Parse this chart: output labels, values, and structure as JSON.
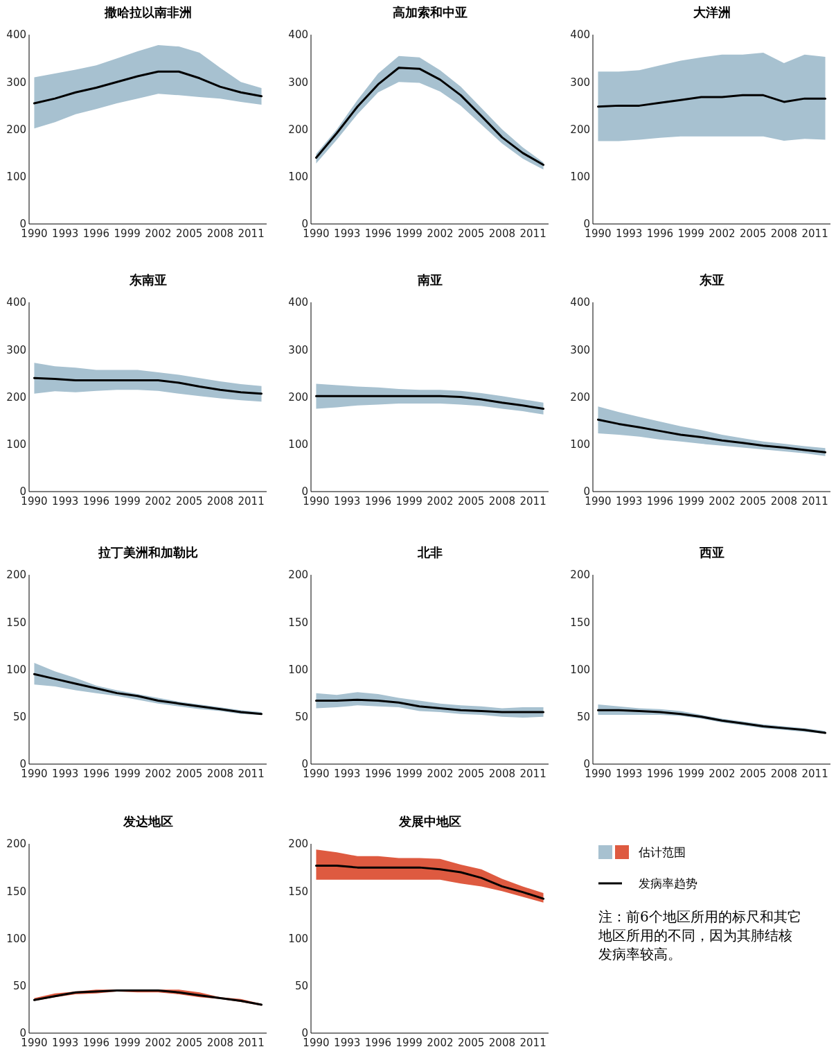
{
  "chart_data": [
    {
      "type": "line",
      "title": "撒哈拉以南非洲",
      "x": [
        1990,
        1992,
        1994,
        1996,
        1998,
        2000,
        2002,
        2004,
        2006,
        2008,
        2010,
        2012
      ],
      "xlim": [
        1989.5,
        2012.5
      ],
      "xticks": [
        1990,
        1993,
        1996,
        1999,
        2002,
        2005,
        2008,
        2011
      ],
      "ylim": [
        0,
        400
      ],
      "yticks": [
        0,
        100,
        200,
        300,
        400
      ],
      "grid": false,
      "colors": [
        "#a7c1d0"
      ],
      "series": [
        {
          "color": "#000000",
          "values": [
            255,
            265,
            278,
            288,
            300,
            312,
            322,
            322,
            308,
            290,
            278,
            270
          ],
          "upper": [
            310,
            318,
            326,
            335,
            350,
            365,
            378,
            375,
            362,
            330,
            300,
            287
          ],
          "lower": [
            202,
            215,
            232,
            243,
            255,
            265,
            275,
            272,
            268,
            265,
            258,
            252
          ]
        }
      ]
    },
    {
      "type": "line",
      "title": "高加索和中亚",
      "x": [
        1990,
        1992,
        1994,
        1996,
        1998,
        2000,
        2002,
        2004,
        2006,
        2008,
        2010,
        2012
      ],
      "xlim": [
        1989.5,
        2012.5
      ],
      "xticks": [
        1990,
        1993,
        1996,
        1999,
        2002,
        2005,
        2008,
        2011
      ],
      "ylim": [
        0,
        400
      ],
      "yticks": [
        0,
        100,
        200,
        300,
        400
      ],
      "grid": false,
      "colors": [
        "#a7c1d0"
      ],
      "series": [
        {
          "color": "#000000",
          "values": [
            140,
            192,
            248,
            295,
            330,
            328,
            305,
            272,
            228,
            183,
            150,
            125
          ],
          "upper": [
            148,
            200,
            262,
            318,
            355,
            352,
            325,
            290,
            245,
            200,
            162,
            130
          ],
          "lower": [
            128,
            178,
            232,
            278,
            300,
            298,
            280,
            250,
            210,
            170,
            138,
            115
          ]
        }
      ]
    },
    {
      "type": "line",
      "title": "大洋洲",
      "x": [
        1990,
        1992,
        1994,
        1996,
        1998,
        2000,
        2002,
        2004,
        2006,
        2008,
        2010,
        2012
      ],
      "xlim": [
        1989.5,
        2012.5
      ],
      "xticks": [
        1990,
        1993,
        1996,
        1999,
        2002,
        2005,
        2008,
        2011
      ],
      "ylim": [
        0,
        400
      ],
      "yticks": [
        0,
        100,
        200,
        300,
        400
      ],
      "grid": false,
      "colors": [
        "#a7c1d0"
      ],
      "series": [
        {
          "color": "#000000",
          "values": [
            248,
            250,
            250,
            256,
            262,
            268,
            268,
            272,
            272,
            258,
            265,
            265
          ],
          "upper": [
            322,
            322,
            325,
            335,
            345,
            352,
            358,
            358,
            362,
            340,
            358,
            353
          ],
          "lower": [
            175,
            175,
            178,
            182,
            185,
            185,
            185,
            185,
            185,
            176,
            180,
            178
          ]
        }
      ]
    },
    {
      "type": "line",
      "title": "东南亚",
      "x": [
        1990,
        1992,
        1994,
        1996,
        1998,
        2000,
        2002,
        2004,
        2006,
        2008,
        2010,
        2012
      ],
      "xlim": [
        1989.5,
        2012.5
      ],
      "xticks": [
        1990,
        1993,
        1996,
        1999,
        2002,
        2005,
        2008,
        2011
      ],
      "ylim": [
        0,
        400
      ],
      "yticks": [
        0,
        100,
        200,
        300,
        400
      ],
      "grid": false,
      "colors": [
        "#a7c1d0"
      ],
      "series": [
        {
          "color": "#000000",
          "values": [
            240,
            238,
            235,
            235,
            235,
            235,
            235,
            230,
            222,
            215,
            210,
            207
          ],
          "upper": [
            272,
            265,
            262,
            257,
            257,
            257,
            252,
            247,
            240,
            233,
            227,
            223
          ],
          "lower": [
            207,
            212,
            210,
            213,
            215,
            215,
            213,
            207,
            202,
            197,
            193,
            190
          ]
        }
      ]
    },
    {
      "type": "line",
      "title": "南亚",
      "x": [
        1990,
        1992,
        1994,
        1996,
        1998,
        2000,
        2002,
        2004,
        2006,
        2008,
        2010,
        2012
      ],
      "xlim": [
        1989.5,
        2012.5
      ],
      "xticks": [
        1990,
        1993,
        1996,
        1999,
        2002,
        2005,
        2008,
        2011
      ],
      "ylim": [
        0,
        400
      ],
      "yticks": [
        0,
        100,
        200,
        300,
        400
      ],
      "grid": false,
      "colors": [
        "#a7c1d0"
      ],
      "series": [
        {
          "color": "#000000",
          "values": [
            202,
            202,
            202,
            202,
            202,
            202,
            202,
            200,
            195,
            188,
            182,
            175
          ],
          "upper": [
            228,
            225,
            222,
            220,
            217,
            215,
            215,
            213,
            208,
            202,
            195,
            188
          ],
          "lower": [
            175,
            178,
            182,
            184,
            186,
            186,
            186,
            184,
            181,
            175,
            170,
            163
          ]
        }
      ]
    },
    {
      "type": "line",
      "title": "东亚",
      "x": [
        1990,
        1992,
        1994,
        1996,
        1998,
        2000,
        2002,
        2004,
        2006,
        2008,
        2010,
        2012
      ],
      "xlim": [
        1989.5,
        2012.5
      ],
      "xticks": [
        1990,
        1993,
        1996,
        1999,
        2002,
        2005,
        2008,
        2011
      ],
      "ylim": [
        0,
        400
      ],
      "yticks": [
        0,
        100,
        200,
        300,
        400
      ],
      "grid": false,
      "colors": [
        "#a7c1d0"
      ],
      "series": [
        {
          "color": "#000000",
          "values": [
            152,
            143,
            136,
            128,
            120,
            115,
            108,
            103,
            97,
            93,
            88,
            83
          ],
          "upper": [
            180,
            168,
            158,
            148,
            138,
            130,
            120,
            113,
            106,
            101,
            96,
            92
          ],
          "lower": [
            123,
            120,
            116,
            110,
            106,
            101,
            97,
            93,
            89,
            85,
            81,
            75
          ]
        }
      ]
    },
    {
      "type": "line",
      "title": "拉丁美洲和加勒比",
      "x": [
        1990,
        1992,
        1994,
        1996,
        1998,
        2000,
        2002,
        2004,
        2006,
        2008,
        2010,
        2012
      ],
      "xlim": [
        1989.5,
        2012.5
      ],
      "xticks": [
        1990,
        1993,
        1996,
        1999,
        2002,
        2005,
        2008,
        2011
      ],
      "ylim": [
        0,
        200
      ],
      "yticks": [
        0,
        50,
        100,
        150,
        200
      ],
      "grid": false,
      "colors": [
        "#a7c1d0"
      ],
      "series": [
        {
          "color": "#000000",
          "values": [
            95,
            90,
            85,
            80,
            75,
            72,
            67,
            64,
            61,
            58,
            55,
            53
          ],
          "upper": [
            107,
            98,
            91,
            83,
            78,
            74,
            70,
            66,
            63,
            60,
            57,
            55
          ],
          "lower": [
            84,
            82,
            78,
            75,
            72,
            68,
            64,
            61,
            58,
            56,
            53,
            52
          ]
        }
      ]
    },
    {
      "type": "line",
      "title": "北非",
      "x": [
        1990,
        1992,
        1994,
        1996,
        1998,
        2000,
        2002,
        2004,
        2006,
        2008,
        2010,
        2012
      ],
      "xlim": [
        1989.5,
        2012.5
      ],
      "xticks": [
        1990,
        1993,
        1996,
        1999,
        2002,
        2005,
        2008,
        2011
      ],
      "ylim": [
        0,
        200
      ],
      "yticks": [
        0,
        50,
        100,
        150,
        200
      ],
      "grid": false,
      "colors": [
        "#a7c1d0"
      ],
      "series": [
        {
          "color": "#000000",
          "values": [
            67,
            67,
            68,
            67,
            65,
            61,
            59,
            57,
            56,
            55,
            55,
            55
          ],
          "upper": [
            75,
            73,
            76,
            74,
            70,
            67,
            64,
            62,
            61,
            59,
            60,
            60
          ],
          "lower": [
            59,
            60,
            62,
            61,
            60,
            56,
            55,
            53,
            52,
            50,
            49,
            50
          ]
        }
      ]
    },
    {
      "type": "line",
      "title": "西亚",
      "x": [
        1990,
        1992,
        1994,
        1996,
        1998,
        2000,
        2002,
        2004,
        2006,
        2008,
        2010,
        2012
      ],
      "xlim": [
        1989.5,
        2012.5
      ],
      "xticks": [
        1990,
        1993,
        1996,
        1999,
        2002,
        2005,
        2008,
        2011
      ],
      "ylim": [
        0,
        200
      ],
      "yticks": [
        0,
        50,
        100,
        150,
        200
      ],
      "grid": false,
      "colors": [
        "#a7c1d0"
      ],
      "series": [
        {
          "color": "#000000",
          "values": [
            57,
            57,
            56,
            55,
            53,
            50,
            46,
            43,
            40,
            38,
            36,
            33
          ],
          "upper": [
            63,
            61,
            59,
            58,
            56,
            52,
            48,
            45,
            42,
            40,
            38,
            35
          ],
          "lower": [
            52,
            52,
            52,
            52,
            51,
            48,
            44,
            41,
            38,
            36,
            34,
            32
          ]
        }
      ]
    },
    {
      "type": "line",
      "title": "发达地区",
      "x": [
        1990,
        1992,
        1994,
        1996,
        1998,
        2000,
        2002,
        2004,
        2006,
        2008,
        2010,
        2012
      ],
      "xlim": [
        1989.5,
        2012.5
      ],
      "xticks": [
        1990,
        1993,
        1996,
        1999,
        2002,
        2005,
        2008,
        2011
      ],
      "ylim": [
        0,
        200
      ],
      "yticks": [
        0,
        50,
        100,
        150,
        200
      ],
      "grid": false,
      "colors": [
        "#de5a40"
      ],
      "series": [
        {
          "color": "#000000",
          "values": [
            35,
            39,
            43,
            44,
            45,
            45,
            45,
            43,
            40,
            37,
            34,
            30
          ],
          "upper": [
            37,
            42,
            44,
            46,
            46,
            46,
            46,
            46,
            43,
            38,
            36,
            31
          ],
          "lower": [
            34,
            38,
            41,
            42,
            44,
            43,
            43,
            41,
            38,
            36,
            33,
            29
          ]
        }
      ]
    },
    {
      "type": "line",
      "title": "发展中地区",
      "x": [
        1990,
        1992,
        1994,
        1996,
        1998,
        2000,
        2002,
        2004,
        2006,
        2008,
        2010,
        2012
      ],
      "xlim": [
        1989.5,
        2012.5
      ],
      "xticks": [
        1990,
        1993,
        1996,
        1999,
        2002,
        2005,
        2008,
        2011
      ],
      "ylim": [
        0,
        200
      ],
      "yticks": [
        0,
        50,
        100,
        150,
        200
      ],
      "grid": false,
      "colors": [
        "#de5a40"
      ],
      "series": [
        {
          "color": "#000000",
          "values": [
            177,
            177,
            175,
            175,
            175,
            175,
            173,
            170,
            164,
            155,
            149,
            142
          ],
          "upper": [
            194,
            191,
            187,
            187,
            185,
            185,
            184,
            178,
            173,
            163,
            155,
            148
          ],
          "lower": [
            162,
            162,
            162,
            162,
            162,
            162,
            162,
            158,
            155,
            150,
            144,
            138
          ]
        }
      ]
    },
    {
      "type": "other",
      "annotations": [
        "估计范围",
        "发病率趋势",
        "注：前6个地区所用的标尺和其它地区所用的不同，因为其肺结核发病率较高。"
      ]
    }
  ]
}
